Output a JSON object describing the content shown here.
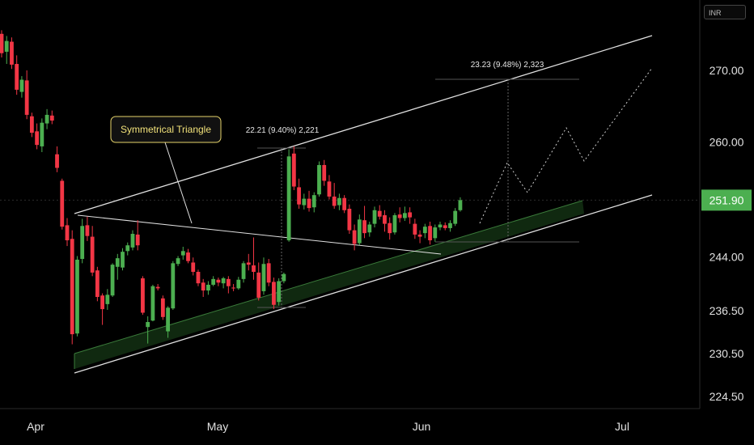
{
  "currency_label": "INR",
  "chart_data": {
    "type": "candlestick",
    "x_months": [
      "Apr",
      "May",
      "Jun",
      "Jul"
    ],
    "y_ticks": [
      270.0,
      260.0,
      244.0,
      236.5,
      230.5,
      224.5
    ],
    "y_tick_labels": [
      "270.00",
      "260.00",
      "244.00",
      "236.50",
      "230.50",
      "224.50"
    ],
    "last_price": 251.9,
    "last_price_label": "251.90",
    "candles": [
      [
        275.1,
        275.6,
        271.8,
        272.4
      ],
      [
        272.6,
        274.8,
        270.9,
        274.1
      ],
      [
        274.0,
        274.6,
        270.2,
        270.8
      ],
      [
        270.9,
        272.1,
        266.6,
        267.3
      ],
      [
        267.0,
        269.2,
        266.2,
        268.7
      ],
      [
        268.6,
        270.0,
        263.2,
        263.8
      ],
      [
        263.6,
        264.1,
        260.7,
        261.3
      ],
      [
        261.5,
        262.6,
        259.0,
        259.6
      ],
      [
        259.4,
        263.3,
        258.6,
        262.7
      ],
      [
        262.6,
        264.6,
        261.8,
        263.8
      ],
      [
        263.7,
        264.4,
        262.5,
        263.0
      ],
      [
        258.3,
        259.4,
        255.8,
        256.4
      ],
      [
        254.6,
        254.9,
        247.8,
        248.2
      ],
      [
        248.4,
        249.4,
        245.5,
        246.3
      ],
      [
        246.5,
        247.7,
        231.8,
        233.2
      ],
      [
        233.3,
        244.1,
        232.9,
        243.6
      ],
      [
        243.7,
        249.3,
        243.1,
        248.3
      ],
      [
        248.4,
        249.6,
        246.2,
        246.9
      ],
      [
        246.8,
        248.3,
        241.3,
        241.8
      ],
      [
        242.1,
        242.6,
        237.8,
        238.4
      ],
      [
        238.6,
        238.9,
        234.5,
        236.7
      ],
      [
        237.4,
        239.5,
        236.6,
        238.7
      ],
      [
        238.6,
        243.1,
        238.4,
        242.9
      ],
      [
        242.6,
        244.4,
        240.8,
        243.8
      ],
      [
        242.5,
        245.2,
        242.1,
        244.7
      ],
      [
        244.8,
        246.0,
        244.2,
        245.6
      ],
      [
        245.3,
        247.7,
        244.9,
        247.2
      ],
      [
        247.1,
        249.1,
        244.9,
        245.6
      ],
      [
        241.0,
        241.3,
        235.9,
        236.2
      ],
      [
        234.2,
        235.7,
        231.9,
        234.9
      ],
      [
        235.1,
        240.1,
        235.0,
        239.9
      ],
      [
        239.8,
        240.2,
        239.3,
        239.6
      ],
      [
        238.2,
        238.6,
        235.2,
        235.6
      ],
      [
        233.6,
        237.1,
        232.7,
        236.9
      ],
      [
        236.8,
        243.4,
        236.6,
        243.1
      ],
      [
        243.0,
        244.1,
        242.7,
        243.8
      ],
      [
        244.2,
        245.4,
        243.6,
        244.8
      ],
      [
        244.6,
        245.1,
        243.1,
        243.4
      ],
      [
        243.2,
        243.9,
        241.4,
        241.9
      ],
      [
        241.9,
        242.2,
        239.9,
        240.3
      ],
      [
        240.4,
        240.9,
        238.4,
        239.3
      ],
      [
        239.3,
        240.6,
        238.7,
        240.1
      ],
      [
        240.1,
        241.3,
        239.9,
        240.9
      ],
      [
        240.8,
        241.1,
        239.9,
        240.4
      ],
      [
        240.3,
        241.2,
        239.6,
        241.0
      ],
      [
        240.9,
        241.3,
        238.9,
        239.9
      ],
      [
        239.7,
        240.2,
        239.2,
        239.6
      ],
      [
        239.6,
        241.2,
        239.4,
        240.8
      ],
      [
        240.9,
        243.4,
        240.4,
        243.1
      ],
      [
        243.2,
        244.4,
        242.1,
        242.9
      ],
      [
        242.8,
        246.7,
        240.8,
        241.9
      ],
      [
        241.8,
        243.2,
        237.9,
        238.3
      ],
      [
        239.2,
        243.9,
        238.7,
        243.0
      ],
      [
        243.1,
        243.7,
        239.9,
        240.4
      ],
      [
        240.5,
        241.1,
        236.7,
        237.3
      ],
      [
        237.7,
        241.0,
        237.2,
        240.6
      ],
      [
        240.6,
        241.8,
        240.3,
        241.6
      ],
      [
        246.3,
        259.0,
        246.1,
        258.0
      ],
      [
        258.4,
        259.4,
        253.3,
        253.8
      ],
      [
        253.7,
        254.9,
        250.7,
        251.3
      ],
      [
        251.2,
        252.8,
        250.6,
        252.1
      ],
      [
        252.1,
        253.2,
        250.3,
        250.8
      ],
      [
        250.9,
        253.0,
        250.2,
        252.6
      ],
      [
        252.7,
        257.3,
        252.4,
        256.8
      ],
      [
        256.8,
        257.5,
        253.9,
        254.6
      ],
      [
        254.5,
        255.4,
        252.0,
        252.4
      ],
      [
        252.4,
        254.3,
        250.7,
        251.1
      ],
      [
        251.2,
        252.8,
        250.5,
        252.2
      ],
      [
        252.2,
        252.6,
        250.1,
        250.5
      ],
      [
        250.7,
        251.3,
        247.2,
        247.7
      ],
      [
        247.7,
        248.5,
        244.9,
        245.8
      ],
      [
        245.9,
        249.9,
        245.6,
        249.2
      ],
      [
        249.1,
        251.1,
        246.6,
        247.3
      ],
      [
        247.4,
        248.9,
        246.8,
        248.5
      ],
      [
        248.6,
        251.0,
        248.1,
        250.5
      ],
      [
        250.4,
        251.2,
        249.2,
        249.6
      ],
      [
        249.8,
        250.5,
        247.5,
        248.6
      ],
      [
        248.7,
        249.5,
        246.4,
        247.3
      ],
      [
        247.4,
        250.1,
        247.1,
        249.8
      ],
      [
        249.9,
        250.9,
        248.8,
        249.4
      ],
      [
        249.4,
        251.0,
        249.0,
        250.1
      ],
      [
        250.2,
        250.9,
        248.6,
        249.5
      ],
      [
        248.6,
        249.3,
        246.5,
        247.1
      ],
      [
        247.1,
        247.7,
        245.9,
        246.8
      ],
      [
        247.3,
        248.6,
        246.6,
        248.2
      ],
      [
        248.3,
        248.9,
        245.7,
        246.3
      ],
      [
        246.6,
        248.5,
        246.1,
        248.1
      ],
      [
        248.1,
        248.9,
        247.7,
        248.5
      ],
      [
        248.4,
        248.8,
        247.7,
        248.0
      ],
      [
        248.0,
        249.1,
        247.5,
        248.7
      ],
      [
        248.6,
        250.8,
        248.3,
        250.4
      ],
      [
        250.5,
        252.3,
        250.3,
        251.9
      ]
    ],
    "annotations": {
      "callout": "Symmetrical Triangle",
      "measure_1": "22.21 (9.40%) 2,221",
      "measure_2": "23.23 (9.48%) 2,323"
    },
    "colors": {
      "up": "#4caf50",
      "down": "#f23645",
      "trendline": "#e0e0e0",
      "channel_fill": "#1e4a1e",
      "price_label_bg": "#4caf50",
      "callout_border": "#e6d36a",
      "callout_text": "#f2e27a"
    }
  }
}
